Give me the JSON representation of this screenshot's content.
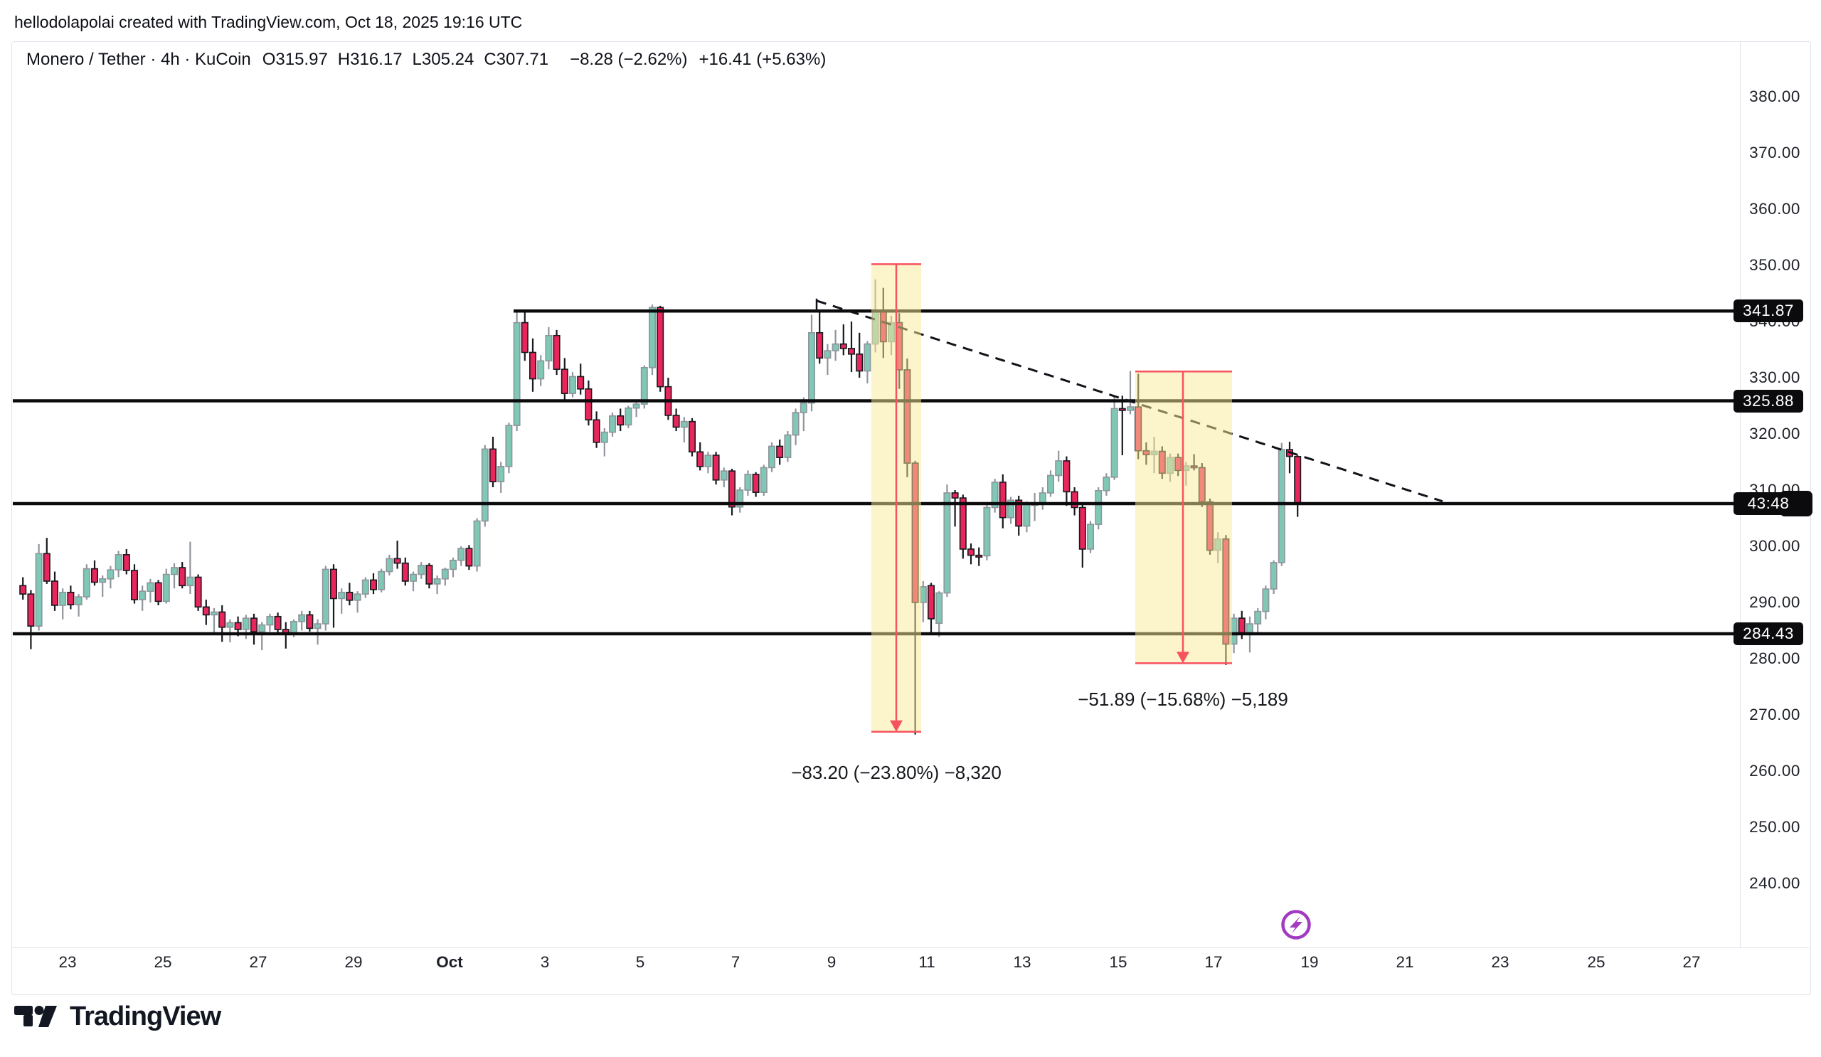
{
  "attribution": "hellodolapolai created with TradingView.com, Oct 18, 2025 19:16 UTC",
  "header": {
    "symbol": "Monero / Tether",
    "interval": "4h",
    "exchange": "KuCoin",
    "separator": "·",
    "fields": [
      {
        "k": "O",
        "v": "315.97"
      },
      {
        "k": "H",
        "v": "316.17"
      },
      {
        "k": "L",
        "v": "305.24"
      },
      {
        "k": "C",
        "v": "307.71"
      }
    ],
    "change1": "−8.28 (−2.62%)",
    "change2": "+16.41 (+5.63%)"
  },
  "logo": {
    "text": "TradingView"
  },
  "colors": {
    "up_fill": "#7EC8B5",
    "up_stroke": "#8F959C",
    "down_fill": "#E8265C",
    "down_stroke": "#17191E",
    "line": "#0B0B0D",
    "measure_red": "#F7525F",
    "band_fill": "rgba(250,233,150,0.5)",
    "marker_purple": "#A33BC2",
    "badge_bg": "#0B0B0D",
    "badge_text": "#FFFFFF"
  },
  "chart_data": {
    "type": "candlestick",
    "title": "Monero / Tether · 4h · KuCoin",
    "ylim": [
      240,
      380
    ],
    "grid": false,
    "scale": {
      "x0": 28,
      "dx": 11.2,
      "candle_w": 8.4,
      "y_top": 136,
      "p_top": 380,
      "ppu": 7.9,
      "pane_left": 18,
      "pane_right": 2446
    },
    "price_ticks": [
      "380.00",
      "370.00",
      "360.00",
      "350.00",
      "340.00",
      "330.00",
      "320.00",
      "310.00",
      "300.00",
      "290.00",
      "280.00",
      "270.00",
      "260.00",
      "250.00",
      "240.00"
    ],
    "price_tick_values": [
      380,
      370,
      360,
      350,
      340,
      330,
      320,
      310,
      300,
      290,
      280,
      270,
      260,
      250,
      240
    ],
    "time_ticks": [
      {
        "label": "23",
        "x": 95
      },
      {
        "label": "25",
        "x": 229
      },
      {
        "label": "27",
        "x": 363
      },
      {
        "label": "29",
        "x": 497
      },
      {
        "label": "Oct",
        "x": 632,
        "bold": true
      },
      {
        "label": "3",
        "x": 766
      },
      {
        "label": "5",
        "x": 900
      },
      {
        "label": "7",
        "x": 1034
      },
      {
        "label": "9",
        "x": 1169
      },
      {
        "label": "11",
        "x": 1303
      },
      {
        "label": "13",
        "x": 1437
      },
      {
        "label": "15",
        "x": 1572
      },
      {
        "label": "17",
        "x": 1706
      },
      {
        "label": "19",
        "x": 1841
      },
      {
        "label": "21",
        "x": 1975
      },
      {
        "label": "23",
        "x": 2109
      },
      {
        "label": "25",
        "x": 2244
      },
      {
        "label": "27",
        "x": 2378
      }
    ],
    "horizontal_lines": [
      {
        "price": 341.87,
        "label": "341.87",
        "from_x": 722,
        "countdown": false
      },
      {
        "price": 325.88,
        "label": "325.88",
        "from_x": 18,
        "countdown": false
      },
      {
        "price": 307.6,
        "label": "43:48",
        "from_x": 18,
        "countdown": true
      },
      {
        "price": 284.43,
        "label": "284.43",
        "from_x": 18,
        "countdown": false
      }
    ],
    "trendline": {
      "x1": 1148,
      "p1": 343.7,
      "x2": 2028,
      "p2": 308.0,
      "dashed": true
    },
    "measurements": [
      {
        "x1": 1225,
        "x2": 1295,
        "top_price": 350.2,
        "bottom_price": 267.0,
        "arrow_x": 1260,
        "label": "−83.20 (−23.80%) −8,320",
        "label_y": 1071
      },
      {
        "x1": 1596,
        "x2": 1732,
        "top_price": 331.1,
        "bottom_price": 279.2,
        "arrow_x": 1663,
        "label": "−51.89 (−15.68%) −5,189",
        "label_y": 968
      }
    ],
    "boost_marker": {
      "x": 1822,
      "y": 1300
    },
    "candles": [
      [
        293.0,
        294.5,
        290.5,
        291.5
      ],
      [
        291.5,
        292.2,
        281.7,
        285.8
      ],
      [
        285.8,
        300.4,
        285.0,
        298.7
      ],
      [
        298.7,
        301.5,
        293.3,
        293.8
      ],
      [
        293.8,
        295.5,
        288.5,
        289.5
      ],
      [
        289.5,
        292.5,
        287.0,
        291.8
      ],
      [
        291.8,
        293.0,
        288.8,
        289.6
      ],
      [
        289.6,
        291.5,
        287.5,
        291.0
      ],
      [
        291.0,
        296.8,
        290.5,
        296.0
      ],
      [
        296.0,
        297.5,
        293.0,
        293.6
      ],
      [
        293.6,
        294.8,
        291.0,
        294.2
      ],
      [
        294.2,
        296.5,
        292.5,
        295.8
      ],
      [
        295.8,
        299.2,
        294.5,
        298.5
      ],
      [
        298.5,
        299.5,
        295.0,
        295.7
      ],
      [
        295.7,
        296.8,
        289.8,
        290.5
      ],
      [
        290.5,
        293.0,
        288.5,
        292.0
      ],
      [
        292.0,
        294.2,
        290.0,
        293.5
      ],
      [
        293.5,
        294.0,
        289.5,
        290.2
      ],
      [
        290.2,
        296.0,
        289.8,
        295.0
      ],
      [
        295.0,
        297.0,
        292.5,
        296.2
      ],
      [
        296.2,
        297.2,
        292.5,
        293.0
      ],
      [
        293.0,
        300.8,
        291.5,
        294.5
      ],
      [
        294.5,
        295.0,
        288.5,
        289.2
      ],
      [
        289.2,
        290.5,
        286.0,
        287.8
      ],
      [
        287.8,
        289.0,
        284.5,
        288.3
      ],
      [
        288.3,
        289.5,
        283.0,
        285.6
      ],
      [
        285.6,
        287.0,
        282.9,
        286.4
      ],
      [
        286.4,
        287.5,
        284.0,
        285.2
      ],
      [
        285.2,
        287.8,
        283.5,
        287.2
      ],
      [
        287.2,
        288.0,
        282.5,
        284.8
      ],
      [
        284.8,
        286.5,
        281.5,
        286.0
      ],
      [
        286.0,
        288.0,
        284.8,
        287.5
      ],
      [
        287.5,
        288.2,
        284.5,
        285.2
      ],
      [
        285.2,
        286.5,
        281.8,
        284.5
      ],
      [
        284.5,
        287.0,
        283.8,
        286.6
      ],
      [
        286.6,
        288.5,
        285.0,
        287.8
      ],
      [
        287.8,
        288.5,
        284.8,
        285.4
      ],
      [
        285.4,
        287.0,
        282.5,
        286.2
      ],
      [
        286.2,
        296.5,
        285.0,
        295.9
      ],
      [
        295.9,
        296.8,
        285.5,
        290.7
      ],
      [
        290.7,
        292.5,
        288.0,
        291.8
      ],
      [
        291.8,
        293.5,
        289.5,
        290.4
      ],
      [
        290.4,
        292.0,
        288.2,
        291.5
      ],
      [
        291.5,
        294.5,
        290.8,
        294.0
      ],
      [
        294.0,
        295.2,
        291.5,
        292.3
      ],
      [
        292.3,
        296.0,
        291.8,
        295.5
      ],
      [
        295.5,
        298.5,
        294.8,
        297.8
      ],
      [
        297.8,
        301.0,
        296.0,
        297.0
      ],
      [
        297.0,
        298.0,
        293.0,
        293.8
      ],
      [
        293.8,
        295.5,
        292.0,
        295.0
      ],
      [
        295.0,
        297.2,
        294.2,
        296.6
      ],
      [
        296.6,
        297.0,
        292.5,
        293.3
      ],
      [
        293.3,
        294.8,
        291.5,
        294.2
      ],
      [
        294.2,
        296.2,
        293.0,
        295.9
      ],
      [
        295.9,
        298.0,
        294.5,
        297.5
      ],
      [
        297.5,
        300.0,
        296.5,
        299.6
      ],
      [
        299.6,
        300.2,
        295.8,
        296.5
      ],
      [
        296.5,
        305.0,
        295.5,
        304.5
      ],
      [
        304.5,
        318.0,
        303.5,
        317.3
      ],
      [
        317.3,
        319.5,
        310.5,
        311.5
      ],
      [
        311.5,
        315.0,
        309.5,
        314.2
      ],
      [
        314.2,
        322.0,
        313.0,
        321.5
      ],
      [
        321.5,
        341.9,
        320.5,
        339.8
      ],
      [
        339.8,
        341.9,
        333.0,
        334.5
      ],
      [
        334.5,
        337.0,
        327.5,
        329.8
      ],
      [
        329.8,
        334.0,
        328.5,
        333.0
      ],
      [
        333.0,
        339.0,
        331.5,
        337.5
      ],
      [
        337.5,
        338.5,
        330.5,
        331.5
      ],
      [
        331.5,
        333.5,
        326.0,
        327.2
      ],
      [
        327.2,
        331.0,
        326.5,
        330.2
      ],
      [
        330.2,
        332.5,
        327.0,
        328.0
      ],
      [
        328.0,
        329.5,
        321.5,
        322.5
      ],
      [
        322.5,
        324.0,
        317.5,
        318.5
      ],
      [
        318.5,
        321.0,
        316.0,
        320.3
      ],
      [
        320.3,
        323.8,
        319.5,
        323.2
      ],
      [
        323.2,
        324.5,
        320.5,
        321.6
      ],
      [
        321.6,
        325.0,
        321.0,
        324.6
      ],
      [
        324.6,
        326.0,
        323.0,
        325.3
      ],
      [
        325.3,
        332.2,
        324.5,
        331.8
      ],
      [
        331.8,
        343.0,
        330.5,
        342.5
      ],
      [
        342.5,
        342.8,
        327.5,
        328.4
      ],
      [
        328.4,
        330.0,
        322.5,
        323.3
      ],
      [
        323.3,
        324.5,
        320.5,
        321.2
      ],
      [
        321.2,
        323.0,
        318.5,
        322.2
      ],
      [
        322.2,
        322.8,
        316.0,
        316.8
      ],
      [
        316.8,
        318.5,
        313.5,
        314.2
      ],
      [
        314.2,
        316.8,
        313.0,
        316.2
      ],
      [
        316.2,
        316.8,
        311.0,
        311.8
      ],
      [
        311.8,
        314.0,
        310.5,
        313.4
      ],
      [
        313.4,
        313.8,
        305.5,
        307.0
      ],
      [
        307.0,
        310.5,
        306.0,
        310.0
      ],
      [
        310.0,
        313.5,
        309.0,
        312.8
      ],
      [
        312.8,
        313.2,
        308.8,
        309.6
      ],
      [
        309.6,
        314.5,
        309.0,
        314.0
      ],
      [
        314.0,
        318.5,
        313.2,
        317.8
      ],
      [
        317.8,
        319.0,
        314.5,
        315.8
      ],
      [
        315.8,
        320.5,
        315.0,
        319.8
      ],
      [
        319.8,
        324.5,
        318.0,
        323.8
      ],
      [
        323.8,
        326.5,
        320.5,
        325.5
      ],
      [
        325.5,
        341.2,
        324.0,
        338.0
      ],
      [
        338.0,
        341.8,
        332.5,
        333.5
      ],
      [
        333.5,
        336.0,
        330.5,
        334.8
      ],
      [
        334.8,
        338.5,
        333.0,
        336.0
      ],
      [
        336.0,
        339.5,
        334.0,
        335.2
      ],
      [
        335.2,
        340.0,
        331.0,
        334.2
      ],
      [
        334.2,
        338.0,
        330.0,
        331.2
      ],
      [
        331.2,
        336.5,
        329.0,
        336.0
      ],
      [
        336.0,
        347.5,
        334.5,
        341.8
      ],
      [
        341.8,
        346.0,
        333.5,
        336.4
      ],
      [
        336.4,
        341.0,
        334.0,
        339.8
      ],
      [
        339.8,
        341.5,
        328.0,
        331.4
      ],
      [
        331.4,
        333.4,
        312.3,
        314.8
      ],
      [
        314.8,
        315.2,
        266.5,
        290.0
      ],
      [
        290.0,
        293.8,
        286.5,
        292.8
      ],
      [
        293.0,
        293.5,
        284.2,
        287.1
      ],
      [
        286.3,
        292.0,
        283.9,
        291.7
      ],
      [
        291.7,
        311.0,
        291.0,
        309.5
      ],
      [
        309.5,
        310.0,
        303.5,
        308.6
      ],
      [
        308.6,
        309.2,
        297.8,
        299.5
      ],
      [
        299.5,
        300.5,
        296.8,
        298.4
      ],
      [
        298.4,
        299.8,
        296.5,
        298.3
      ],
      [
        298.3,
        307.5,
        297.5,
        306.9
      ],
      [
        306.9,
        312.0,
        306.0,
        311.4
      ],
      [
        311.4,
        312.8,
        303.2,
        305.1
      ],
      [
        305.1,
        308.8,
        304.0,
        308.2
      ],
      [
        308.2,
        309.0,
        301.9,
        303.6
      ],
      [
        303.6,
        308.0,
        302.5,
        307.4
      ],
      [
        307.4,
        309.5,
        304.5,
        307.6
      ],
      [
        307.6,
        310.5,
        306.5,
        309.5
      ],
      [
        309.5,
        313.5,
        308.8,
        312.6
      ],
      [
        312.6,
        317.0,
        311.5,
        315.2
      ],
      [
        315.2,
        316.0,
        307.2,
        309.7
      ],
      [
        309.7,
        310.5,
        305.5,
        306.9
      ],
      [
        306.9,
        307.5,
        296.2,
        299.5
      ],
      [
        299.5,
        304.5,
        298.8,
        303.9
      ],
      [
        303.9,
        310.5,
        303.0,
        309.9
      ],
      [
        309.9,
        313.0,
        309.0,
        312.3
      ],
      [
        312.3,
        326.6,
        311.8,
        324.5
      ],
      [
        324.5,
        326.8,
        316.2,
        324.2
      ],
      [
        324.2,
        331.2,
        323.5,
        324.8
      ],
      [
        324.8,
        330.7,
        315.5,
        317.0
      ],
      [
        317.0,
        318.5,
        314.5,
        316.3
      ],
      [
        316.3,
        319.5,
        313.0,
        316.9
      ],
      [
        316.9,
        317.8,
        312.0,
        313.0
      ],
      [
        313.0,
        316.5,
        311.5,
        315.8
      ],
      [
        315.8,
        316.5,
        312.5,
        313.5
      ],
      [
        313.5,
        315.0,
        310.8,
        314.3
      ],
      [
        314.3,
        316.4,
        313.5,
        314.0
      ],
      [
        314.0,
        314.8,
        307.0,
        307.9
      ],
      [
        307.9,
        308.5,
        298.5,
        299.3
      ],
      [
        299.3,
        302.5,
        297.0,
        301.3
      ],
      [
        301.3,
        302.0,
        278.9,
        282.6
      ],
      [
        282.6,
        288.0,
        281.0,
        287.2
      ],
      [
        287.2,
        288.5,
        283.5,
        284.6
      ],
      [
        284.6,
        287.5,
        281.1,
        286.2
      ],
      [
        286.2,
        289.0,
        284.5,
        288.4
      ],
      [
        288.4,
        293.0,
        287.0,
        292.4
      ],
      [
        292.4,
        297.5,
        291.5,
        297.1
      ],
      [
        297.1,
        318.4,
        296.5,
        317.2
      ],
      [
        317.2,
        318.6,
        313.0,
        316.0
      ],
      [
        315.97,
        316.17,
        305.24,
        307.71
      ]
    ]
  }
}
